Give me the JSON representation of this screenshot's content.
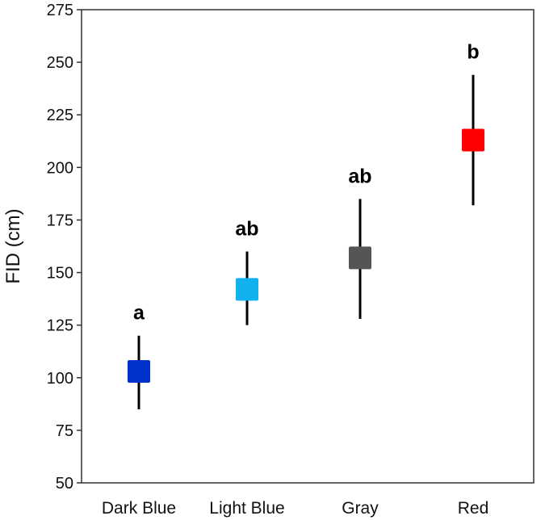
{
  "chart_data": {
    "type": "scatter",
    "title": "",
    "xlabel": "",
    "ylabel": "FID (cm)",
    "ylim": [
      50,
      275
    ],
    "yticks": [
      50,
      75,
      100,
      125,
      150,
      175,
      200,
      225,
      250,
      275
    ],
    "ytick_labels": [
      "50",
      "75",
      "100",
      "125",
      "150",
      "175",
      "200",
      "225",
      "250",
      "275"
    ],
    "categories": [
      "Dark Blue",
      "Light Blue",
      "Gray",
      "Red"
    ],
    "series": [
      {
        "values": [
          103,
          142,
          157,
          213
        ],
        "error_low": [
          85,
          125,
          128,
          182
        ],
        "error_high": [
          120,
          160,
          185,
          244
        ],
        "significance": [
          "a",
          "ab",
          "ab",
          "b"
        ],
        "colors": [
          "#0033cc",
          "#11b0ee",
          "#555555",
          "#ff0000"
        ]
      }
    ],
    "grid": false,
    "legend": "none",
    "marker": "square",
    "error_bar_color": "#000000",
    "frame_color": "#333333"
  }
}
